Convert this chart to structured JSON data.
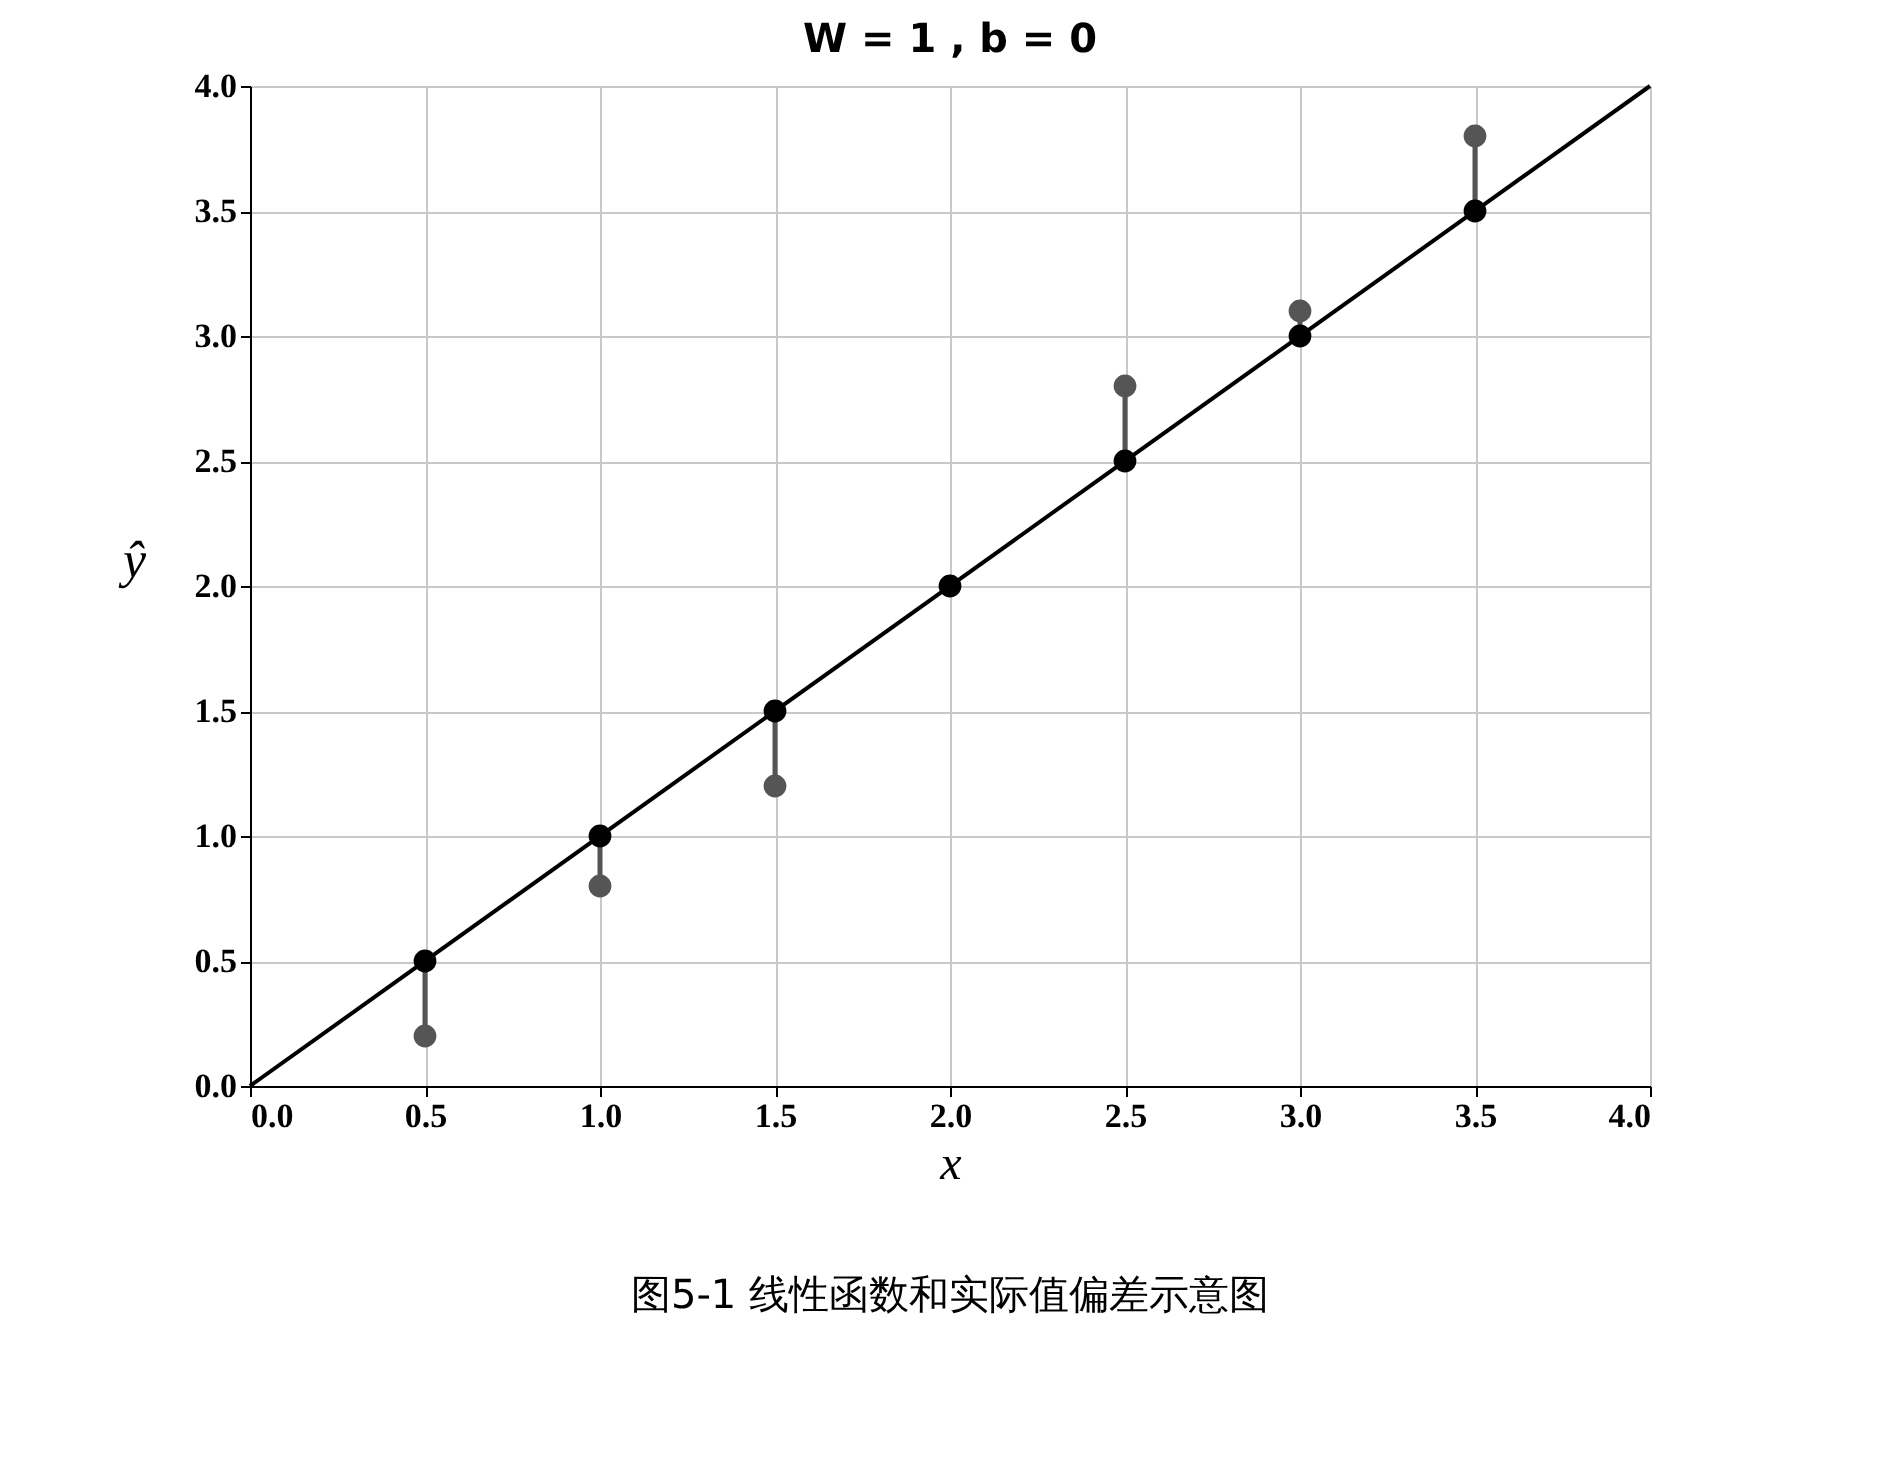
{
  "chart_data": {
    "type": "scatter",
    "title": "W = 1 , b = 0",
    "xlabel": "x",
    "ylabel": "ŷ",
    "annotations": [
      "图5-1 线性函数和实际值偏差示意图"
    ],
    "xlim": [
      0,
      4
    ],
    "ylim": [
      0,
      4
    ],
    "xticks": [
      {
        "value": 0,
        "label": "0.0"
      },
      {
        "value": 0.5,
        "label": "0.5"
      },
      {
        "value": 1,
        "label": "1.0"
      },
      {
        "value": 1.5,
        "label": "1.5"
      },
      {
        "value": 2,
        "label": "2.0"
      },
      {
        "value": 2.5,
        "label": "2.5"
      },
      {
        "value": 3,
        "label": "3.0"
      },
      {
        "value": 3.5,
        "label": "3.5"
      },
      {
        "value": 4,
        "label": "4.0"
      }
    ],
    "yticks": [
      {
        "value": 0,
        "label": "0.0"
      },
      {
        "value": 0.5,
        "label": "0.5"
      },
      {
        "value": 1,
        "label": "1.0"
      },
      {
        "value": 1.5,
        "label": "1.5"
      },
      {
        "value": 2,
        "label": "2.0"
      },
      {
        "value": 2.5,
        "label": "2.5"
      },
      {
        "value": 3,
        "label": "3.0"
      },
      {
        "value": 3.5,
        "label": "3.5"
      },
      {
        "value": 4,
        "label": "4.0"
      }
    ],
    "grid": true,
    "marker": "circle",
    "series": [
      {
        "type": "line",
        "color": "#000000",
        "x": [
          0,
          4
        ],
        "values": [
          0,
          4
        ],
        "marker": "none"
      },
      {
        "type": "line",
        "color": "#555555",
        "x": [
          0.5,
          0.5
        ],
        "values": [
          0.2,
          0.5
        ],
        "marker": "none"
      },
      {
        "type": "line",
        "color": "#555555",
        "x": [
          1.0,
          1.0
        ],
        "values": [
          0.8,
          1.0
        ],
        "marker": "none"
      },
      {
        "type": "line",
        "color": "#555555",
        "x": [
          1.5,
          1.5
        ],
        "values": [
          1.2,
          1.5
        ],
        "marker": "none"
      },
      {
        "type": "line",
        "color": "#555555",
        "x": [
          2.5,
          2.5
        ],
        "values": [
          2.5,
          2.8
        ],
        "marker": "none"
      },
      {
        "type": "line",
        "color": "#555555",
        "x": [
          3.0,
          3.0
        ],
        "values": [
          3.0,
          3.1
        ],
        "marker": "none"
      },
      {
        "type": "line",
        "color": "#555555",
        "x": [
          3.5,
          3.5
        ],
        "values": [
          3.5,
          3.8
        ],
        "marker": "none"
      },
      {
        "color": "#555555",
        "x": [
          0.5,
          1.0,
          1.5,
          2.0,
          2.5,
          3.0,
          3.5
        ],
        "values": [
          0.2,
          0.8,
          1.2,
          null,
          2.8,
          3.1,
          3.8
        ]
      },
      {
        "color": "#000000",
        "x": [
          0.5,
          1.0,
          1.5,
          2.0,
          2.5,
          3.0,
          3.5
        ],
        "values": [
          0.5,
          1.0,
          1.5,
          2.0,
          2.5,
          3.0,
          3.5
        ]
      }
    ]
  }
}
